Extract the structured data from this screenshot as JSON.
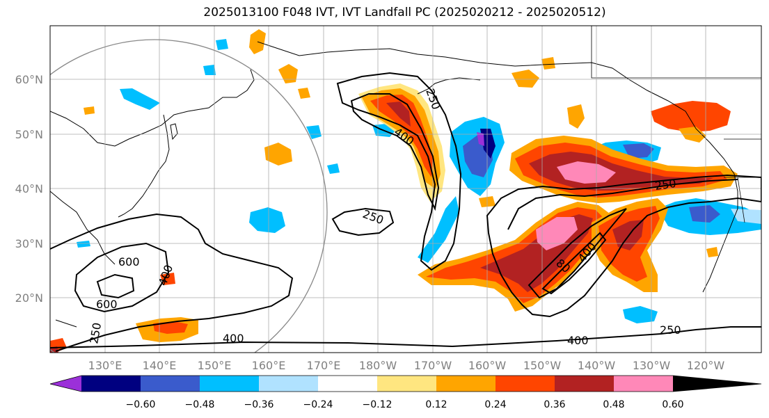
{
  "title": "2025013100 F048 IVT, IVT Landfall PC (2025020212 - 2025020512)",
  "lat_labels": [
    "20°N",
    "30°N",
    "40°N",
    "50°N",
    "60°N"
  ],
  "lon_labels": [
    "130°E",
    "140°E",
    "150°E",
    "160°E",
    "170°E",
    "180°W",
    "170°W",
    "160°W",
    "150°W",
    "140°W",
    "130°W",
    "120°W"
  ],
  "contour_labels": [
    "600",
    "600",
    "400",
    "250",
    "400",
    "250",
    "250",
    "400",
    "250",
    "80",
    "400",
    "250",
    "400"
  ],
  "colorbar": {
    "tick_labels": [
      "−0.60",
      "−0.48",
      "−0.36",
      "−0.24",
      "−0.12",
      "0.12",
      "0.24",
      "0.36",
      "0.48",
      "0.60"
    ],
    "colors": [
      "#9b30d9",
      "#000080",
      "#3a5bcc",
      "#00bfff",
      "#b0e2ff",
      "#ffffff",
      "#ffe680",
      "#ffa500",
      "#ff4500",
      "#b22222",
      "#ff88b8"
    ]
  }
}
